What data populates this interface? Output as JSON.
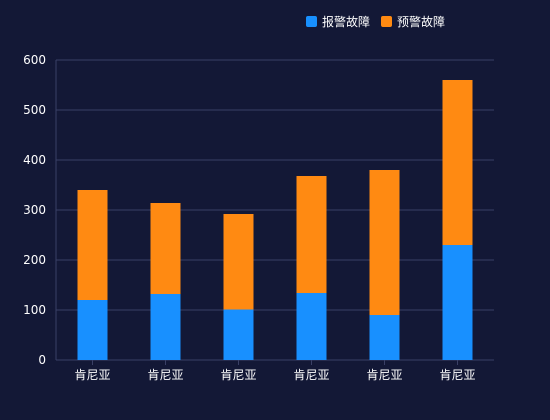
{
  "chart_data": {
    "type": "bar",
    "stacked": true,
    "categories": [
      "肯尼亚",
      "肯尼亚",
      "肯尼亚",
      "肯尼亚",
      "肯尼亚",
      "肯尼亚"
    ],
    "series": [
      {
        "name": "报警故障",
        "color": "#1890ff",
        "values": [
          120,
          132,
          101,
          134,
          90,
          230
        ]
      },
      {
        "name": "预警故障",
        "color": "#ff8a12",
        "values": [
          220,
          182,
          191,
          234,
          290,
          330
        ]
      }
    ],
    "yticks": [
      0,
      100,
      200,
      300,
      400,
      500,
      600
    ],
    "ylim": [
      0,
      600
    ],
    "grid": true,
    "legend_position": "top-right",
    "background": "#131836",
    "gridline_color": "#3a4066",
    "text_color": "#ffffff"
  }
}
